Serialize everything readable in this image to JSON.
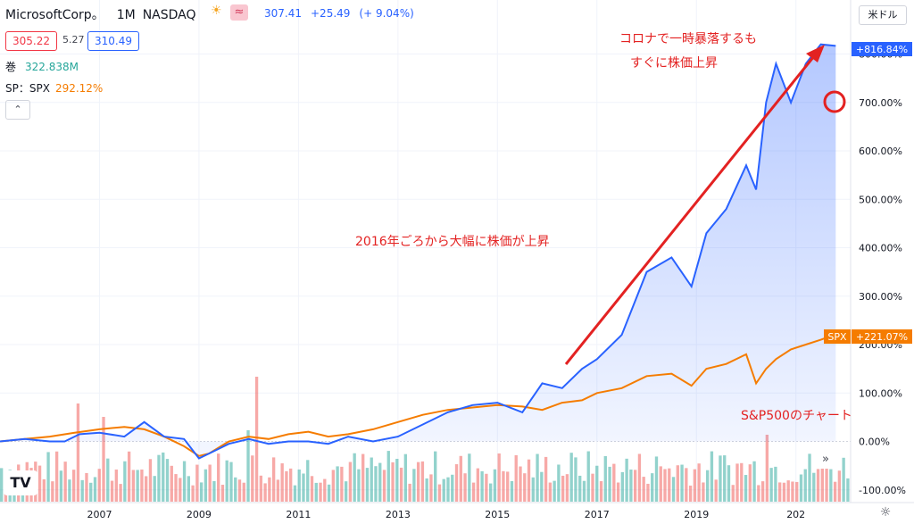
{
  "header": {
    "symbol_name": "MicrosoftCorp。",
    "timeframe": "1M",
    "exchange": "NASDAQ",
    "last_price": "307.41",
    "change": "+25.49",
    "change_pct": "(+ 9.04%)",
    "bid": "305.22",
    "spread": "5.27",
    "ask": "310.49",
    "volume_label": "巻",
    "volume_value": "322.838M",
    "compare_label": "SP：SPX",
    "compare_value": "292.12%",
    "collapse_glyph": "⌃",
    "currency_unit": "米ドル"
  },
  "annotations": {
    "corona_line1": "コロナで一時暴落するも",
    "corona_line2": "すぐに株価上昇",
    "rise_2016": "2016年ごろから大幅に株価が上昇",
    "sp500_note": "S&P500のチャート"
  },
  "badges": {
    "msft_value": "+816.84%",
    "spx_symbol": "SPX",
    "spx_value": "+221.07%"
  },
  "icons": {
    "logo": "TV",
    "scroll_right": "»",
    "gear": "☼",
    "sun": "☀",
    "wave": "≈"
  },
  "colors": {
    "msft_line": "#2962ff",
    "spx_line": "#f57c00",
    "annotation": "#e32222",
    "volume_up": "#26a69a",
    "volume_down": "#ef5350"
  },
  "chart_data": {
    "type": "line",
    "x_ticks": [
      "2007",
      "2009",
      "2011",
      "2013",
      "2015",
      "2017",
      "2019",
      "202"
    ],
    "y_ticks": [
      "-100.00%",
      "0.00%",
      "100.00%",
      "200.00%",
      "300.00%",
      "400.00%",
      "500.00%",
      "600.00%",
      "700.00%",
      "800.00%"
    ],
    "ylim": [
      -100,
      830
    ],
    "xlim": [
      2005.0,
      2022.1
    ],
    "series": [
      {
        "name": "MicrosoftCorp。",
        "x": [
          2005.0,
          2005.5,
          2006.0,
          2006.3,
          2006.6,
          2007.0,
          2007.5,
          2007.9,
          2008.3,
          2008.7,
          2009.0,
          2009.2,
          2009.6,
          2010.0,
          2010.4,
          2010.8,
          2011.2,
          2011.6,
          2012.0,
          2012.5,
          2013.0,
          2013.5,
          2014.0,
          2014.5,
          2015.0,
          2015.5,
          2015.9,
          2016.3,
          2016.7,
          2017.0,
          2017.5,
          2018.0,
          2018.5,
          2018.9,
          2019.2,
          2019.6,
          2020.0,
          2020.2,
          2020.4,
          2020.6,
          2020.9,
          2021.2,
          2021.5,
          2021.8
        ],
        "y": [
          0,
          5,
          0,
          0,
          15,
          18,
          10,
          40,
          10,
          5,
          -35,
          -25,
          -5,
          5,
          -5,
          0,
          0,
          -5,
          10,
          0,
          10,
          35,
          60,
          75,
          80,
          60,
          120,
          110,
          150,
          170,
          220,
          350,
          380,
          320,
          430,
          480,
          570,
          520,
          700,
          780,
          700,
          780,
          820,
          816.84
        ]
      },
      {
        "name": "SPX",
        "x": [
          2005.0,
          2005.5,
          2006.0,
          2006.5,
          2007.0,
          2007.5,
          2007.9,
          2008.3,
          2008.7,
          2009.0,
          2009.2,
          2009.6,
          2010.0,
          2010.4,
          2010.8,
          2011.2,
          2011.6,
          2012.0,
          2012.5,
          2013.0,
          2013.5,
          2014.0,
          2014.5,
          2015.0,
          2015.5,
          2015.9,
          2016.3,
          2016.7,
          2017.0,
          2017.5,
          2018.0,
          2018.5,
          2018.9,
          2019.2,
          2019.6,
          2020.0,
          2020.2,
          2020.4,
          2020.6,
          2020.9,
          2021.2,
          2021.5,
          2021.8
        ],
        "y": [
          0,
          5,
          10,
          18,
          25,
          30,
          25,
          10,
          -10,
          -30,
          -25,
          0,
          10,
          5,
          15,
          20,
          10,
          15,
          25,
          40,
          55,
          65,
          70,
          75,
          72,
          65,
          80,
          85,
          100,
          110,
          135,
          140,
          115,
          150,
          160,
          180,
          120,
          150,
          170,
          190,
          200,
          210,
          221.07
        ]
      }
    ],
    "volume": {
      "ylim": [
        0,
        320
      ]
    }
  }
}
